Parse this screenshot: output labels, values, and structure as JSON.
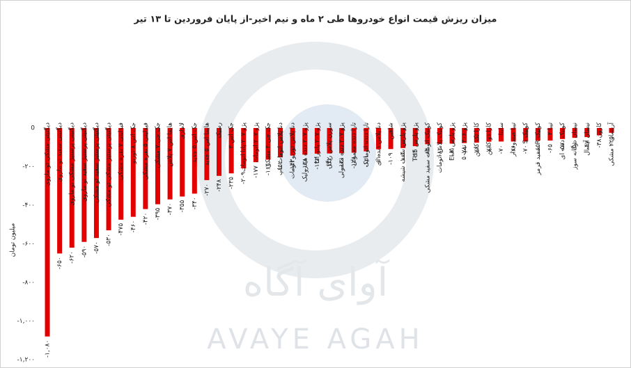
{
  "chart_data": {
    "type": "bar",
    "title": "میزان ریزش قیمت انواع خودروها طی ۲ ماه و نیم اخیر-از پایان فروردین تا ۱۳ تیر",
    "y_label": "میلیون تومان",
    "watermark": [
      "آوای آگاه",
      "AVAYE AGAH"
    ],
    "color": "#e30000",
    "categories": [
      "دیگنیتی مشکی تو ماروی",
      "دیگنیتی سفید تو ماروی",
      "دیگنیتی پرستیژ مشکی تو ماروی",
      "دیگنیتی پرستیژ سفید تو ماروی",
      "دیگنیتی پرستیژ سفید تو مشکی",
      "دیگنیتی پرستیژ مشکی تو مشکی",
      "فیدلیتی ۷ نفره مشکی",
      "جک اس ۸ توربو",
      "فیدلیتی ۵ نفره مشکی",
      "جک جی ۷ مشکی",
      "هایما اس ۷ پلاس",
      "لاماری",
      "جک اس ۵ جدید",
      "هایما اس ۵ جدید",
      "رسیک",
      "جک اس ۳",
      "پژو ۲۰۷ پانا اتومات",
      "پژو ۲۰۷ اتومات",
      "جک جی ۴ مشکی",
      "دنا پلاس اتومات تاپ",
      "دنا پلاس توربو اتومات",
      "پژو ۲۰۷ دنده هیدرولیک",
      "پژو ۲۰۷ پانوراما",
      "سورن پلاس ریگل",
      "پژو ۲۰۷ دنده معمولی",
      "تارا دنده معمولی",
      "تارا دنده اتوماتیک",
      "دنا پلاس دنده ای",
      "شاهین",
      "پژو پارس سقف شیشه",
      "پژو پارس TU5",
      "کوییک اتومات سفید مشکی",
      "کوییک پلاس اتومات",
      "پژو پارس ELX",
      "پژو ۲۰۶ تیپ ۵",
      "کارا تک کابین",
      "کارا دو کابین",
      "ساینا",
      "تیبا صندوقدار",
      "کوییک S",
      "کوییک R سفید قرمز",
      "تیبا ۲",
      "کوییک دنده ای",
      "نیسان دوگانه سوز",
      "نیسان آیسال",
      "کارون",
      "آریسان ۲ مشکی"
    ],
    "values": [
      -1080,
      -650,
      -620,
      -590,
      -570,
      -530,
      -475,
      -460,
      -420,
      -395,
      -370,
      -355,
      -340,
      -270,
      -248,
      -235,
      -209,
      -177,
      -164,
      -152,
      -143,
      -138,
      -133,
      -132,
      -131,
      -128,
      -121,
      -110,
      -109,
      -104,
      -94,
      -84,
      -82,
      -81,
      -78,
      -76,
      -71,
      -70,
      -70,
      -70,
      -65,
      -65,
      -57,
      -51,
      -47,
      -38,
      -25
    ],
    "value_labels": [
      "-۱,۰۸۰",
      "-۶۵۰",
      "-۶۲۰",
      "-۵۹۰",
      "-۵۷۰",
      "-۵۳۰",
      "-۴۷۵",
      "-۴۶۰",
      "-۴۲۰",
      "-۳۹۵",
      "-۳۷۰",
      "-۳۵۵",
      "-۳۴۰",
      "-۲۷۰",
      "-۲۴۸",
      "-۲۳۵",
      "-۲۰۹",
      "-۱۷۷",
      "-۱۶۴",
      "-۱۵۲",
      "-۱۴۳",
      "-۱۳۸",
      "-۱۳۳",
      "-۱۳۲",
      "-۱۳۱",
      "-۱۲۸",
      "-۱۲۱",
      "-۱۱۰",
      "-۱۰۹",
      "-۱۰۴",
      "-۹۴",
      "-۸۴",
      "-۸۲",
      "-۸۱",
      "-۷۸",
      "-۷۶",
      "-۷۱",
      "-۷۰",
      "-۷۰",
      "-۷۰",
      "-۶۵",
      "-۶۵",
      "-۵۷",
      "-۵۱",
      "-۴۷",
      "-۳۸",
      "-۲۵"
    ],
    "ylim": [
      -1200,
      0
    ],
    "yticks": [
      0,
      {
        "value": -200,
        "label": "-۲۰۰"
      },
      {
        "value": -400,
        "label": "-۴۰۰"
      },
      {
        "value": -600,
        "label": "-۶۰۰"
      },
      {
        "value": -800,
        "label": "-۸۰۰"
      },
      {
        "value": -1000,
        "label": "-۱,۰۰۰"
      },
      {
        "value": -1200,
        "label": "-۱,۲۰۰"
      }
    ],
    "grid": false
  }
}
